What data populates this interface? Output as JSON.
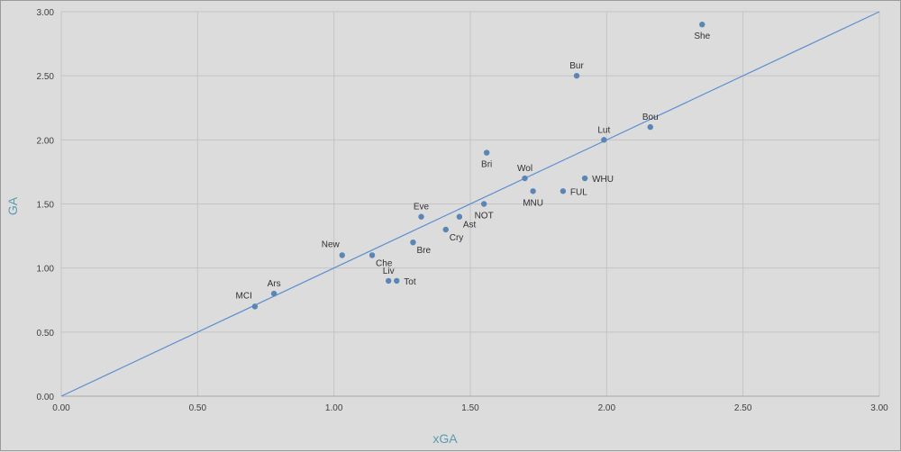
{
  "chart_data": {
    "type": "scatter",
    "xlabel": "xGA",
    "ylabel": "GA",
    "xlim": [
      0,
      3
    ],
    "ylim": [
      0,
      3
    ],
    "grid": true,
    "x_ticks": [
      "0.00",
      "0.50",
      "1.00",
      "1.50",
      "2.00",
      "2.50",
      "3.00"
    ],
    "y_ticks": [
      "0.00",
      "0.50",
      "1.00",
      "1.50",
      "2.00",
      "2.50",
      "3.00"
    ],
    "reference_line": {
      "type": "y=x",
      "from": [
        0,
        0
      ],
      "to": [
        3,
        3
      ]
    },
    "colors": {
      "point": "#5a85b5",
      "line": "#5b8fd0",
      "grid": "#c4c4c4",
      "axis_label": "#5b9bae"
    },
    "points": [
      {
        "label": "She",
        "x": 2.35,
        "y": 2.9,
        "pos": "below"
      },
      {
        "label": "Bur",
        "x": 1.89,
        "y": 2.5,
        "pos": "above"
      },
      {
        "label": "Bou",
        "x": 2.16,
        "y": 2.1,
        "pos": "above"
      },
      {
        "label": "Lut",
        "x": 1.99,
        "y": 2.0,
        "pos": "above"
      },
      {
        "label": "Bri",
        "x": 1.56,
        "y": 1.9,
        "pos": "below"
      },
      {
        "label": "Wol",
        "x": 1.7,
        "y": 1.7,
        "pos": "above"
      },
      {
        "label": "WHU",
        "x": 1.92,
        "y": 1.7,
        "pos": "right"
      },
      {
        "label": "MNU",
        "x": 1.73,
        "y": 1.6,
        "pos": "below"
      },
      {
        "label": "FUL",
        "x": 1.84,
        "y": 1.6,
        "pos": "right"
      },
      {
        "label": "NOT",
        "x": 1.55,
        "y": 1.5,
        "pos": "below"
      },
      {
        "label": "Ast",
        "x": 1.46,
        "y": 1.4,
        "pos": "belowright"
      },
      {
        "label": "Eve",
        "x": 1.32,
        "y": 1.4,
        "pos": "above"
      },
      {
        "label": "Cry",
        "x": 1.41,
        "y": 1.3,
        "pos": "belowright"
      },
      {
        "label": "Bre",
        "x": 1.29,
        "y": 1.2,
        "pos": "belowright"
      },
      {
        "label": "New",
        "x": 1.03,
        "y": 1.1,
        "pos": "aboveleft"
      },
      {
        "label": "Che",
        "x": 1.14,
        "y": 1.1,
        "pos": "belowright"
      },
      {
        "label": "Liv",
        "x": 1.2,
        "y": 0.9,
        "pos": "above"
      },
      {
        "label": "Tot",
        "x": 1.23,
        "y": 0.9,
        "pos": "right"
      },
      {
        "label": "Ars",
        "x": 0.78,
        "y": 0.8,
        "pos": "above"
      },
      {
        "label": "MCI",
        "x": 0.71,
        "y": 0.7,
        "pos": "aboveleft"
      }
    ]
  }
}
